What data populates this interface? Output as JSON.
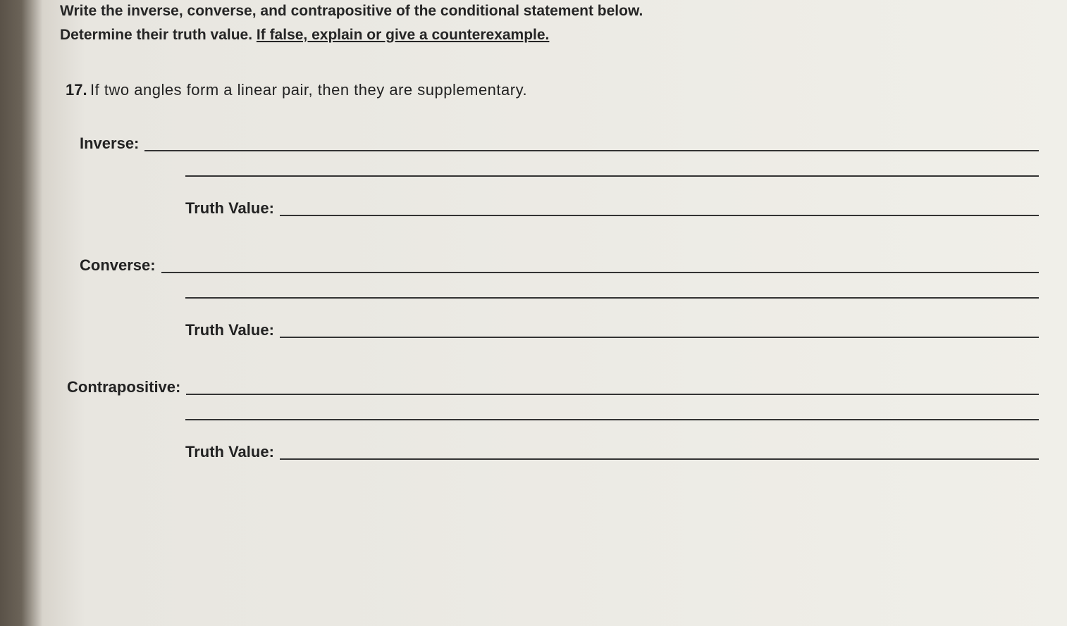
{
  "instructions": {
    "line1": "Write the inverse, converse, and contrapositive of the conditional statement below.",
    "line2_prefix": "Determine their truth value.  ",
    "line2_underlined": "If false, explain or give a counterexample."
  },
  "question": {
    "number": "17.",
    "text": "If two angles form a linear pair, then they are supplementary."
  },
  "labels": {
    "inverse": "Inverse:",
    "converse": "Converse:",
    "contrapositive": "Contrapositive:",
    "truth_value": "Truth Value:"
  },
  "styling": {
    "font_family": "Arial, Helvetica, sans-serif",
    "bold_color": "#252525",
    "text_color": "#222",
    "line_color": "#333",
    "instruction_fontsize": 21,
    "question_fontsize": 22,
    "label_fontsize": 22
  }
}
